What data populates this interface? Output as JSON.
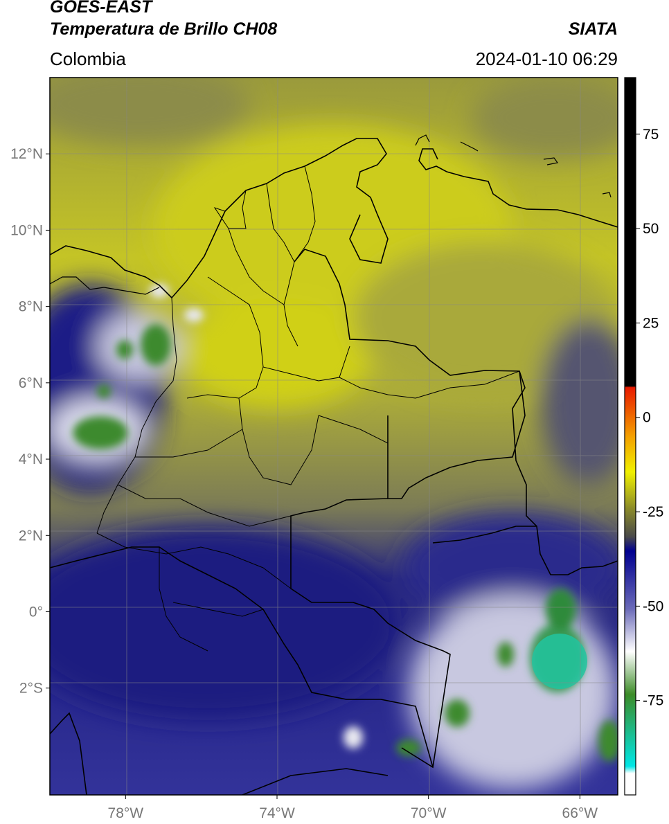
{
  "header": {
    "satellite": "GOES-EAST",
    "product": "Temperatura de Brillo CH08",
    "region": "Colombia",
    "agency": "SIATA",
    "datetime": "2024-01-10 06:29"
  },
  "map": {
    "lon_range": [
      -80,
      -65
    ],
    "lat_range": [
      -4.8,
      14
    ],
    "lon_ticks": [
      {
        "value": -78,
        "label": "78°W"
      },
      {
        "value": -74,
        "label": "74°W"
      },
      {
        "value": -70,
        "label": "70°W"
      },
      {
        "value": -66,
        "label": "66°W"
      }
    ],
    "lat_ticks": [
      {
        "value": 12,
        "label": "12°N"
      },
      {
        "value": 10,
        "label": "10°N"
      },
      {
        "value": 8,
        "label": "8°N"
      },
      {
        "value": 6,
        "label": "6°N"
      },
      {
        "value": 4,
        "label": "4°N"
      },
      {
        "value": 2,
        "label": "2°N"
      },
      {
        "value": 0,
        "label": "0°"
      },
      {
        "value": -2,
        "label": "2°S"
      }
    ]
  },
  "colorbar": {
    "range": [
      -100,
      90
    ],
    "ticks": [
      {
        "value": 75,
        "label": "75"
      },
      {
        "value": 50,
        "label": "50"
      },
      {
        "value": 25,
        "label": "25"
      },
      {
        "value": 0,
        "label": "0"
      },
      {
        "value": -25,
        "label": "-25"
      },
      {
        "value": -50,
        "label": "-50"
      },
      {
        "value": -75,
        "label": "-75"
      }
    ]
  }
}
